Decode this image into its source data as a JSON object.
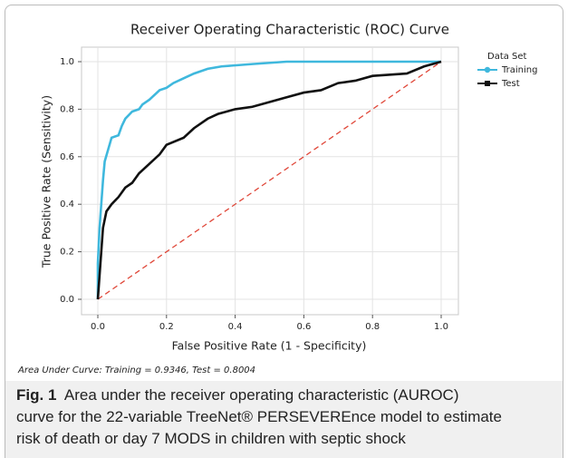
{
  "chart_data": {
    "type": "line",
    "title": "Receiver Operating Characteristic (ROC) Curve",
    "x_label": "False Positive Rate (1 - Specificity)",
    "y_label": "True Positive Rate (Sensitivity)",
    "legend_title": "Data Set",
    "legend_position": "right",
    "grid": true,
    "xlim": [
      0,
      1
    ],
    "ylim": [
      0,
      1
    ],
    "xticks": [
      {
        "value": 0,
        "label": "0.0"
      },
      0.2,
      0.4,
      0.6,
      0.8,
      {
        "value": 1,
        "label": "1.0"
      }
    ],
    "yticks": [
      {
        "value": 0,
        "label": "0.0"
      },
      0.2,
      0.4,
      0.6,
      0.8,
      {
        "value": 1,
        "label": "1.0"
      }
    ],
    "series": [
      {
        "name": "Training",
        "color": "#3fb8dd",
        "x": [
          0,
          0,
          0.005,
          0.01,
          0.015,
          0.02,
          0.03,
          0.04,
          0.06,
          0.07,
          0.08,
          0.1,
          0.12,
          0.13,
          0.15,
          0.18,
          0.2,
          0.22,
          0.25,
          0.28,
          0.32,
          0.36,
          0.45,
          0.55,
          1
        ],
        "values": [
          0,
          0.15,
          0.3,
          0.4,
          0.5,
          0.58,
          0.63,
          0.68,
          0.69,
          0.73,
          0.76,
          0.79,
          0.8,
          0.82,
          0.84,
          0.88,
          0.89,
          0.91,
          0.93,
          0.95,
          0.97,
          0.98,
          0.99,
          1,
          1
        ]
      },
      {
        "name": "Test",
        "color": "#111111",
        "x": [
          0,
          0.005,
          0.01,
          0.015,
          0.025,
          0.04,
          0.06,
          0.08,
          0.1,
          0.12,
          0.15,
          0.18,
          0.2,
          0.25,
          0.28,
          0.32,
          0.35,
          0.4,
          0.45,
          0.5,
          0.55,
          0.6,
          0.65,
          0.7,
          0.75,
          0.8,
          0.9,
          0.95,
          1
        ],
        "values": [
          0,
          0.1,
          0.2,
          0.3,
          0.37,
          0.4,
          0.43,
          0.47,
          0.49,
          0.53,
          0.57,
          0.61,
          0.65,
          0.68,
          0.72,
          0.76,
          0.78,
          0.8,
          0.81,
          0.83,
          0.85,
          0.87,
          0.88,
          0.91,
          0.92,
          0.94,
          0.95,
          0.98,
          1
        ]
      }
    ],
    "reference_line_color": "#e0483a",
    "footnote": "Area Under Curve: Training = 0.9346, Test = 0.8004"
  },
  "caption": {
    "label": "Fig. 1",
    "lines": [
      "Area under the receiver operating characteristic (AUROC)",
      "curve for the 22-variable TreeNet® PERSEVEREnce model to estimate",
      "risk of death or day 7 MODS in children with septic shock"
    ]
  }
}
